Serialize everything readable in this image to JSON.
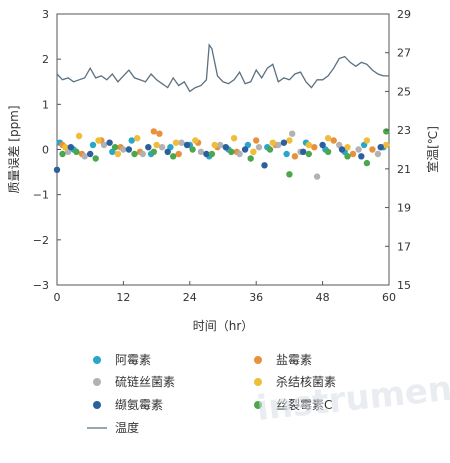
{
  "chart_data": {
    "type": "scatter",
    "title": "",
    "xlabel": "时间（hr）",
    "ylabel_left": "质量误差 [ppm]",
    "ylabel_right": "室温[℃]",
    "xlim": [
      0,
      60
    ],
    "ylim_left": [
      -3,
      3
    ],
    "ylim_right": [
      15,
      29
    ],
    "x_ticks": [
      "0",
      "12",
      "24",
      "36",
      "48",
      "60"
    ],
    "y_left_ticks": [
      "3",
      "2",
      "1",
      "0",
      "−1",
      "−2",
      "−3"
    ],
    "y_right_ticks": [
      "29",
      "27",
      "25",
      "23",
      "21",
      "19",
      "17",
      "15"
    ],
    "grid": false,
    "legend_position": "bottom",
    "series": [
      {
        "name": "阿霉素",
        "color": "#2aa6c9",
        "marker": "circle",
        "axis": "left",
        "x": [
          0.5,
          3,
          6.5,
          10,
          13.5,
          17,
          20.5,
          24,
          27.5,
          31,
          34.5,
          38,
          41.5,
          45,
          48.5,
          52,
          55.5,
          59
        ],
        "y": [
          0.15,
          0.0,
          0.1,
          -0.05,
          0.2,
          -0.1,
          0.05,
          0.1,
          -0.15,
          0.0,
          0.1,
          0.05,
          -0.1,
          0.15,
          0.0,
          -0.05,
          0.1,
          0.05
        ]
      },
      {
        "name": "盐霉素",
        "color": "#e8913a",
        "marker": "circle",
        "axis": "left",
        "x": [
          1,
          4.5,
          8,
          11.5,
          15,
          17.5,
          18.5,
          22,
          25.5,
          29,
          32.5,
          36,
          39.5,
          43,
          46.5,
          50,
          53.5,
          57
        ],
        "y": [
          0.1,
          -0.1,
          0.2,
          0.05,
          -0.05,
          0.4,
          0.35,
          -0.1,
          0.15,
          0.05,
          -0.05,
          0.2,
          0.1,
          -0.15,
          0.05,
          0.2,
          -0.1,
          0.0
        ]
      },
      {
        "name": "硫链丝菌素",
        "color": "#b2b2b2",
        "marker": "circle",
        "axis": "left",
        "x": [
          2,
          5,
          8.5,
          12,
          15.5,
          19,
          22.5,
          26,
          29.5,
          33,
          36.5,
          40,
          42.5,
          44,
          47,
          51,
          54.5,
          58
        ],
        "y": [
          -0.05,
          -0.15,
          0.1,
          0.0,
          -0.1,
          0.05,
          0.15,
          -0.05,
          0.1,
          -0.1,
          0.05,
          0.1,
          0.35,
          -0.05,
          -0.6,
          0.1,
          0.0,
          -0.1
        ]
      },
      {
        "name": "杀结核菌素",
        "color": "#f0bc3a",
        "marker": "circle",
        "axis": "left",
        "x": [
          1.5,
          4,
          7.5,
          11,
          14.5,
          18,
          21.5,
          25,
          28.5,
          32,
          35.5,
          39,
          42,
          45.5,
          49,
          52.5,
          56,
          59.5
        ],
        "y": [
          0.05,
          0.3,
          0.2,
          -0.1,
          0.25,
          0.1,
          0.15,
          0.2,
          0.1,
          0.25,
          -0.05,
          0.15,
          0.2,
          0.1,
          0.25,
          0.05,
          0.2,
          0.1
        ]
      },
      {
        "name": "缬氨霉素",
        "color": "#2b5f9e",
        "marker": "circle",
        "axis": "left",
        "x": [
          0,
          2.5,
          6,
          9.5,
          13,
          16.5,
          20,
          23.5,
          27,
          30.5,
          34,
          37.5,
          41,
          44.5,
          48,
          51.5,
          55,
          58.5
        ],
        "y": [
          -0.45,
          0.05,
          -0.1,
          0.15,
          0.0,
          0.05,
          -0.05,
          0.1,
          -0.1,
          0.05,
          0.0,
          -0.35,
          0.15,
          -0.05,
          0.1,
          0.0,
          -0.15,
          0.05
        ]
      },
      {
        "name": "丝裂霉素C",
        "color": "#4ca64c",
        "marker": "circle",
        "axis": "left",
        "x": [
          1,
          3.5,
          7,
          10.5,
          14,
          17.5,
          21,
          24.5,
          28,
          31.5,
          35,
          38.5,
          42,
          45.5,
          49,
          52.5,
          56,
          59.5
        ],
        "y": [
          -0.1,
          -0.05,
          -0.2,
          0.05,
          -0.1,
          -0.05,
          -0.15,
          0.0,
          -0.1,
          -0.05,
          -0.2,
          0.0,
          -0.55,
          -0.1,
          -0.05,
          -0.15,
          -0.3,
          0.4
        ]
      },
      {
        "name": "温度",
        "color": "#5b7080",
        "marker": "line",
        "axis": "right",
        "x": [
          0,
          1,
          2,
          3,
          4,
          5,
          6,
          7,
          8,
          9,
          10,
          11,
          12,
          13,
          14,
          15,
          16,
          17,
          18,
          19,
          20,
          21,
          22,
          23,
          24,
          25,
          26,
          27,
          27.5,
          28,
          29,
          30,
          31,
          32,
          33,
          34,
          35,
          36,
          37,
          38,
          39,
          40,
          41,
          42,
          43,
          44,
          45,
          46,
          47,
          48,
          49,
          50,
          51,
          52,
          53,
          54,
          55,
          56,
          57,
          58,
          59,
          60
        ],
        "y": [
          25.9,
          25.6,
          25.7,
          25.5,
          25.6,
          25.7,
          26.2,
          25.7,
          25.8,
          25.6,
          25.9,
          25.5,
          25.8,
          26.1,
          25.7,
          25.6,
          25.5,
          25.9,
          25.6,
          25.4,
          25.2,
          25.7,
          25.3,
          25.5,
          25.0,
          25.2,
          25.3,
          25.6,
          27.4,
          27.2,
          25.8,
          25.5,
          25.4,
          25.6,
          26.0,
          25.4,
          25.5,
          26.1,
          25.7,
          26.2,
          26.4,
          25.5,
          25.7,
          25.6,
          25.9,
          26.0,
          25.5,
          25.2,
          25.6,
          25.6,
          25.8,
          26.2,
          26.7,
          26.8,
          26.5,
          26.3,
          26.5,
          26.4,
          26.1,
          25.9,
          25.8,
          25.8
        ]
      }
    ]
  },
  "legend": {
    "items": [
      {
        "label": "阿霉素",
        "color": "#2aa6c9",
        "kind": "dot"
      },
      {
        "label": "盐霉素",
        "color": "#e8913a",
        "kind": "dot"
      },
      {
        "label": "硫链丝菌素",
        "color": "#b2b2b2",
        "kind": "dot"
      },
      {
        "label": "杀结核菌素",
        "color": "#f0bc3a",
        "kind": "dot"
      },
      {
        "label": "缬氨霉素",
        "color": "#2b5f9e",
        "kind": "dot"
      },
      {
        "label": "丝裂霉素C",
        "color": "#4ca64c",
        "kind": "dot"
      },
      {
        "label": "温度",
        "color": "#5b7080",
        "kind": "line"
      }
    ]
  },
  "watermark": "instrument.com.cn"
}
